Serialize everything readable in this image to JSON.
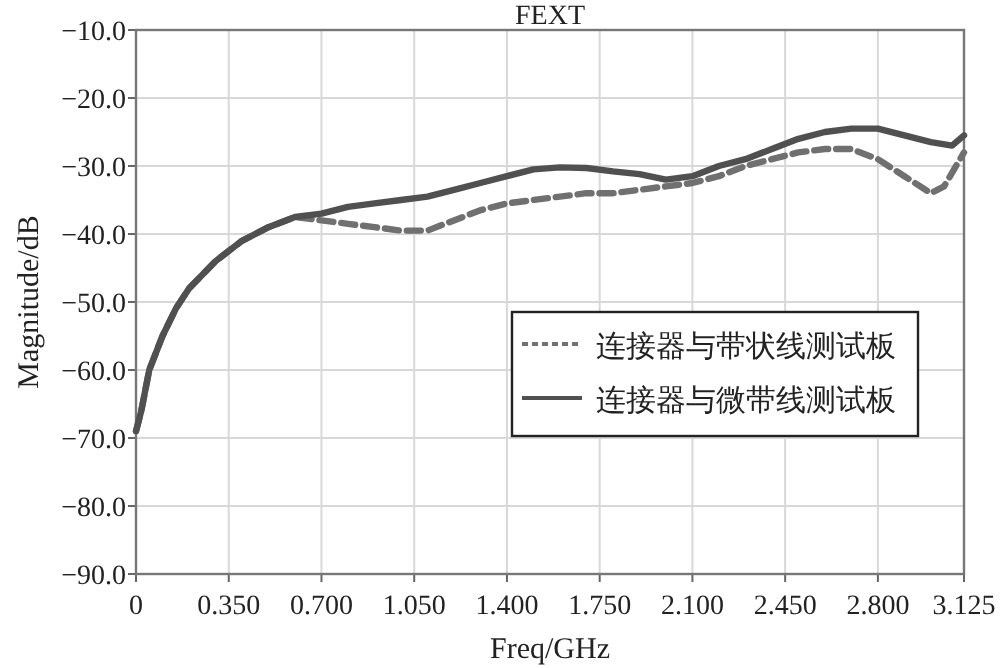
{
  "chart_data": {
    "type": "line",
    "title": "FEXT",
    "xlabel": "Freq/GHz",
    "ylabel": "Magnitude/dB",
    "xlim": [
      0,
      3.125
    ],
    "ylim": [
      -90,
      -10
    ],
    "xticks": [
      0,
      {
        "value": 0.35,
        "label": "0.350"
      },
      {
        "value": 0.7,
        "label": "0.700"
      },
      {
        "value": 1.05,
        "label": "1.050"
      },
      {
        "value": 1.4,
        "label": "1.400"
      },
      {
        "value": 1.75,
        "label": "1.750"
      },
      {
        "value": 2.1,
        "label": "2.100"
      },
      {
        "value": 2.45,
        "label": "2.450"
      },
      {
        "value": 2.8,
        "label": "2.800"
      },
      3.125
    ],
    "yticks": [
      {
        "value": -90,
        "label": "−90.0"
      },
      {
        "value": -80,
        "label": "−80.0"
      },
      {
        "value": -70,
        "label": "−70.0"
      },
      {
        "value": -60,
        "label": "−60.0"
      },
      {
        "value": -50,
        "label": "−50.0"
      },
      {
        "value": -40,
        "label": "−40.0"
      },
      {
        "value": -30,
        "label": "−30.0"
      },
      {
        "value": -20,
        "label": "−20.0"
      },
      {
        "value": -10,
        "label": "−10.0"
      }
    ],
    "grid": true,
    "legend": "right",
    "marker": "none",
    "series": [
      {
        "name": "连接器与带状线测试板",
        "color": "#707070",
        "line_style": "dashed",
        "x": [
          0,
          0.02,
          0.05,
          0.1,
          0.15,
          0.2,
          0.3,
          0.4,
          0.5,
          0.6,
          0.7,
          0.8,
          0.9,
          1.0,
          1.1,
          1.2,
          1.3,
          1.4,
          1.5,
          1.6,
          1.7,
          1.8,
          1.9,
          2.0,
          2.1,
          2.2,
          2.3,
          2.4,
          2.5,
          2.6,
          2.7,
          2.8,
          2.9,
          3.0,
          3.05,
          3.125
        ],
        "values": [
          -69,
          -66,
          -60,
          -55,
          -51,
          -48,
          -44,
          -41,
          -39,
          -37.5,
          -38,
          -38.5,
          -39,
          -39.5,
          -39.5,
          -38,
          -36.5,
          -35.5,
          -35,
          -34.5,
          -34,
          -34,
          -33.5,
          -33,
          -32.5,
          -31.5,
          -30,
          -29,
          -28,
          -27.5,
          -27.5,
          -29,
          -31.5,
          -34,
          -33,
          -28
        ]
      },
      {
        "name": "连接器与微带线测试板",
        "color": "#505050",
        "line_style": "solid",
        "x": [
          0,
          0.02,
          0.05,
          0.1,
          0.15,
          0.2,
          0.3,
          0.4,
          0.5,
          0.6,
          0.7,
          0.8,
          0.9,
          1.0,
          1.1,
          1.2,
          1.3,
          1.4,
          1.5,
          1.6,
          1.7,
          1.8,
          1.9,
          2.0,
          2.1,
          2.2,
          2.3,
          2.4,
          2.5,
          2.6,
          2.7,
          2.8,
          2.9,
          3.0,
          3.08,
          3.125
        ],
        "values": [
          -69,
          -66,
          -60,
          -55,
          -51,
          -48,
          -44,
          -41,
          -39,
          -37.5,
          -37,
          -36,
          -35.5,
          -35,
          -34.5,
          -33.5,
          -32.5,
          -31.5,
          -30.5,
          -30.2,
          -30.3,
          -30.8,
          -31.2,
          -32,
          -31.5,
          -30,
          -29,
          -27.5,
          -26,
          -25,
          -24.5,
          -24.5,
          -25.5,
          -26.5,
          -27,
          -25.5
        ]
      }
    ]
  }
}
